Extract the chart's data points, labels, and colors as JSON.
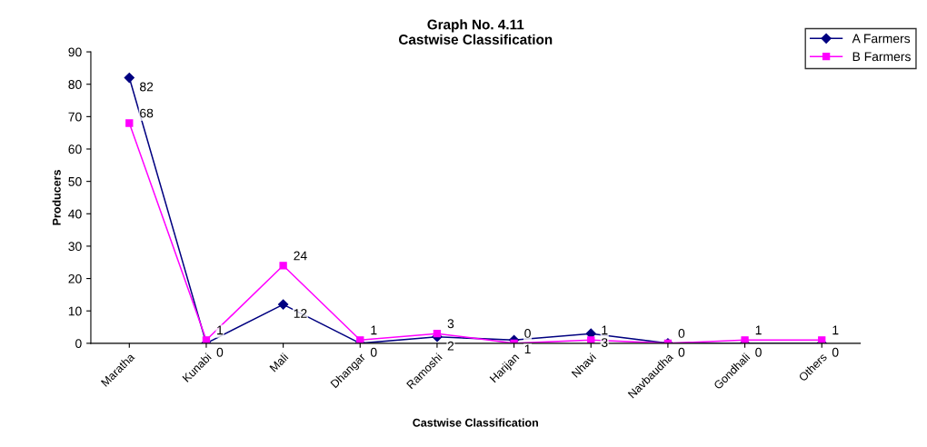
{
  "chart_data": {
    "type": "line",
    "title": "Graph No. 4.11\nCastwise Classification",
    "xlabel": "Castwise Classification",
    "ylabel": "Producers",
    "categories": [
      "Maratha",
      "Kunabi",
      "Mali",
      "Dhangar",
      "Ramoshi",
      "Harijan",
      "Nhavi",
      "Navbaudha",
      "Gondhali",
      "Others"
    ],
    "series": [
      {
        "name": "A Farmers",
        "color": "#000080",
        "marker": "diamond",
        "values": [
          82,
          0,
          12,
          0,
          2,
          1,
          3,
          0,
          0,
          0
        ]
      },
      {
        "name": "B Farmers",
        "color": "#ff00ff",
        "marker": "square",
        "values": [
          68,
          1,
          24,
          1,
          3,
          0,
          1,
          0,
          1,
          1
        ]
      }
    ],
    "ylim": [
      0,
      90
    ],
    "yticks": [
      0,
      10,
      20,
      30,
      40,
      50,
      60,
      70,
      80,
      90
    ],
    "grid": false,
    "legend": "top right",
    "data_labels": true
  }
}
